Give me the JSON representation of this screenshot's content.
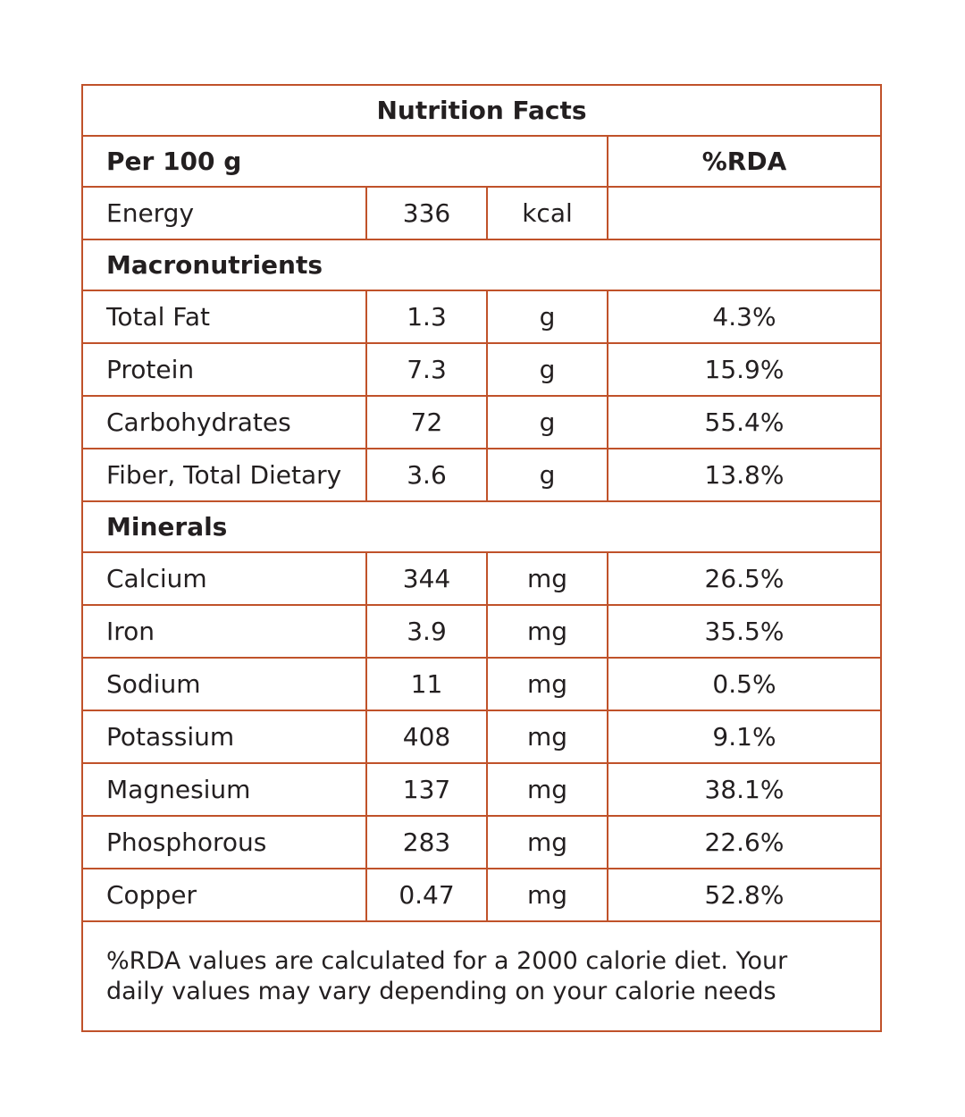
{
  "title": "Nutrition Facts",
  "header": {
    "basis": "Per 100 g",
    "rda": "%RDA"
  },
  "energy": {
    "name": "Energy",
    "value": "336",
    "unit": "kcal"
  },
  "sections": [
    {
      "title": "Macronutrients",
      "rows": [
        [
          "Total Fat",
          "1.3",
          "g",
          "4.3%"
        ],
        [
          "Protein",
          "7.3",
          "g",
          "15.9%"
        ],
        [
          "Carbohydrates",
          "72",
          "g",
          "55.4%"
        ],
        [
          "Fiber, Total Dietary",
          "3.6",
          "g",
          "13.8%"
        ]
      ]
    },
    {
      "title": "Minerals",
      "rows": [
        [
          "Calcium",
          "344",
          "mg",
          "26.5%"
        ],
        [
          "Iron",
          "3.9",
          "mg",
          "35.5%"
        ],
        [
          "Sodium",
          "11",
          "mg",
          "0.5%"
        ],
        [
          "Potassium",
          "408",
          "mg",
          "9.1%"
        ],
        [
          "Magnesium",
          "137",
          "mg",
          "38.1%"
        ],
        [
          "Phosphorous",
          "283",
          "mg",
          "22.6%"
        ],
        [
          "Copper",
          "0.47",
          "mg",
          "52.8%"
        ]
      ]
    }
  ],
  "footnote": [
    "%RDA values are calculated for a 2000 calorie diet. Your",
    "daily values may vary depending on your calorie needs"
  ]
}
